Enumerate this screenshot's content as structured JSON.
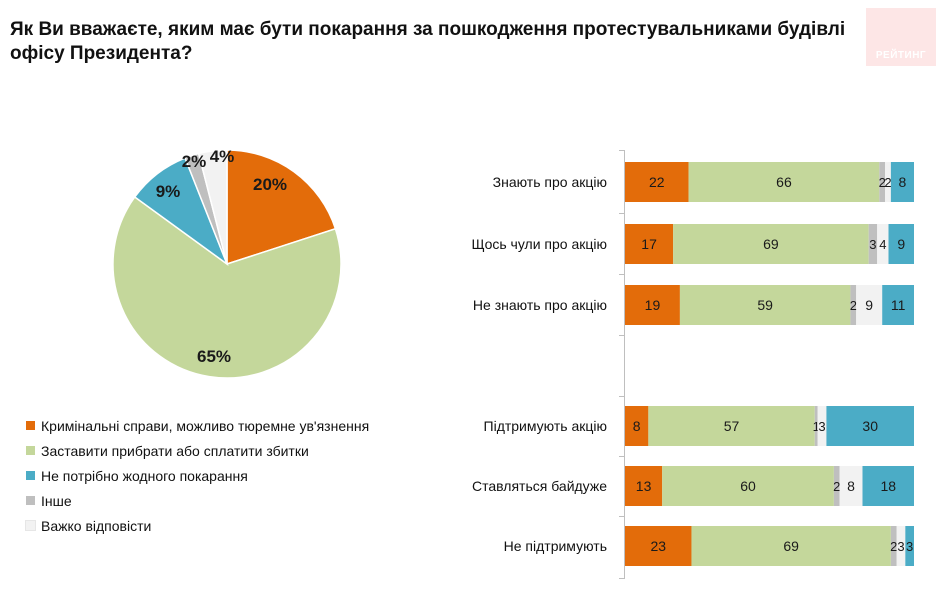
{
  "title": "Як Ви вважаєте, яким має бути покарання за пошкодження протестувальниками будівлі офісу Президента?",
  "logo_text": "РЕЙТИНГ",
  "colors": {
    "criminal": "#e36c0a",
    "repair": "#c4d79b",
    "none": "#4bacc6",
    "other": "#bfbfbf",
    "hard": "#f2f2f2"
  },
  "legend": [
    {
      "key": "criminal",
      "label": "Кримінальні справи, можливо тюремне ув'язнення"
    },
    {
      "key": "repair",
      "label": "Заставити прибрати або сплатити збитки"
    },
    {
      "key": "none",
      "label": "Не потрібно жодного покарання"
    },
    {
      "key": "other",
      "label": "Інше"
    },
    {
      "key": "hard",
      "label": "Важко відповісти"
    }
  ],
  "chart_data": [
    {
      "type": "pie",
      "slices": [
        {
          "key": "criminal",
          "value": 20,
          "label": "20%"
        },
        {
          "key": "repair",
          "value": 65,
          "label": "65%"
        },
        {
          "key": "none",
          "value": 9,
          "label": "9%"
        },
        {
          "key": "other",
          "value": 2,
          "label": "2%"
        },
        {
          "key": "hard",
          "value": 4,
          "label": "4%"
        }
      ]
    },
    {
      "type": "bar",
      "orientation": "horizontal",
      "stacked": true,
      "series_keys": [
        "criminal",
        "repair",
        "other",
        "hard",
        "none"
      ],
      "categories": [
        {
          "label": "Знають про акцію",
          "values": [
            22,
            66,
            2,
            2,
            8
          ]
        },
        {
          "label": "Щось чули про акцію",
          "values": [
            17,
            69,
            3,
            4,
            9
          ]
        },
        {
          "label": "Не знають про акцію",
          "values": [
            19,
            59,
            2,
            9,
            11
          ]
        },
        {
          "label": "Підтримують акцію",
          "values": [
            8,
            57,
            1,
            3,
            30
          ]
        },
        {
          "label": "Ставляться байдуже",
          "values": [
            13,
            60,
            2,
            8,
            18
          ]
        },
        {
          "label": "Не підтримують",
          "values": [
            23,
            69,
            2,
            3,
            3
          ]
        }
      ]
    }
  ]
}
